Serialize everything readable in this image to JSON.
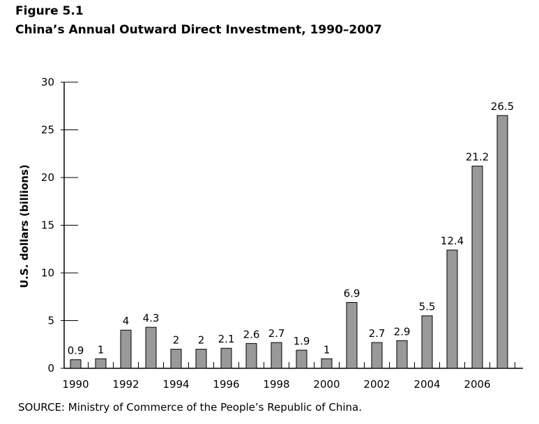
{
  "figure_label": "Figure 5.1",
  "source": "SOURCE: Ministry of Commerce of the People’s Republic of China.",
  "chart_data": {
    "type": "bar",
    "title": "China’s Annual Outward Direct Investment, 1990–2007",
    "ylabel": "U.S. dollars (billions)",
    "xlabel": "",
    "categories": [
      "1990",
      "1991",
      "1992",
      "1993",
      "1994",
      "1995",
      "1996",
      "1997",
      "1998",
      "1999",
      "2000",
      "2001",
      "2002",
      "2003",
      "2004",
      "2005",
      "2006",
      "2007"
    ],
    "values": [
      0.9,
      1,
      4,
      4.3,
      2,
      2,
      2.1,
      2.6,
      2.7,
      1.9,
      1,
      6.9,
      2.7,
      2.9,
      5.5,
      12.4,
      21.2,
      26.5
    ],
    "data_labels": [
      "0.9",
      "1",
      "4",
      "4.3",
      "2",
      "2",
      "2.1",
      "2.6",
      "2.7",
      "1.9",
      "1",
      "6.9",
      "2.7",
      "2.9",
      "5.5",
      "12.4",
      "21.2",
      "26.5"
    ],
    "x_tick_labels": [
      "1990",
      "",
      "1992",
      "",
      "1994",
      "",
      "1996",
      "",
      "1998",
      "",
      "2000",
      "",
      "2002",
      "",
      "2004",
      "",
      "2006",
      ""
    ],
    "y_ticks": [
      "0",
      "5",
      "10",
      "15",
      "20",
      "25",
      "30"
    ],
    "ylim": [
      0,
      30
    ],
    "grid": false,
    "legend": "none",
    "bar_color": "#999999",
    "bar_stroke": "#000000"
  }
}
